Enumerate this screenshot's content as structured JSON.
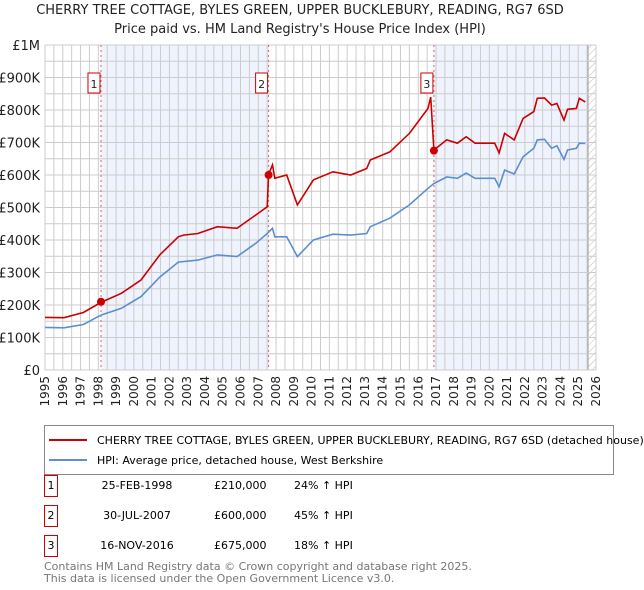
{
  "title": "CHERRY TREE COTTAGE, BYLES GREEN, UPPER BUCKLEBURY, READING, RG7 6SD",
  "subtitle": "Price paid vs. HM Land Registry's House Price Index (HPI)",
  "colors": {
    "property": "#cc0000",
    "hpi": "#5b8fd0",
    "shade": "#eef3fd",
    "grid": "#cccccc"
  },
  "chart_data": {
    "type": "line",
    "ylim": [
      0,
      1000000
    ],
    "xlim": [
      1995,
      2026
    ],
    "yticks": [
      {
        "v": 0,
        "label": "£0"
      },
      {
        "v": 100000,
        "label": "£100K"
      },
      {
        "v": 200000,
        "label": "£200K"
      },
      {
        "v": 300000,
        "label": "£300K"
      },
      {
        "v": 400000,
        "label": "£400K"
      },
      {
        "v": 500000,
        "label": "£500K"
      },
      {
        "v": 600000,
        "label": "£600K"
      },
      {
        "v": 700000,
        "label": "£700K"
      },
      {
        "v": 800000,
        "label": "£800K"
      },
      {
        "v": 900000,
        "label": "£900K"
      },
      {
        "v": 1000000,
        "label": "£1M"
      }
    ],
    "xticks": [
      "1995",
      "1996",
      "1997",
      "1998",
      "1999",
      "2000",
      "2001",
      "2002",
      "2003",
      "2004",
      "2005",
      "2006",
      "2007",
      "2008",
      "2009",
      "2010",
      "2011",
      "2012",
      "2013",
      "2014",
      "2015",
      "2016",
      "2017",
      "2018",
      "2019",
      "2020",
      "2021",
      "2022",
      "2023",
      "2024",
      "2025",
      "2026"
    ],
    "series": [
      {
        "name": "CHERRY TREE COTTAGE, BYLES GREEN, UPPER BUCKLEBURY, READING, RG7 6SD (detached house)",
        "points": [
          [
            1995,
            162000
          ],
          [
            1996.07,
            161000
          ],
          [
            1997.16,
            177000
          ],
          [
            1998.15,
            208000
          ],
          [
            1999.3,
            236000
          ],
          [
            2000.4,
            277000
          ],
          [
            2001.46,
            354000
          ],
          [
            2002.5,
            410000
          ],
          [
            2002.8,
            415000
          ],
          [
            2003.6,
            420000
          ],
          [
            2004.7,
            441000
          ],
          [
            2005.8,
            436000
          ],
          [
            2006.86,
            477000
          ],
          [
            2007.5,
            502000
          ],
          [
            2007.58,
            602000
          ],
          [
            2007.8,
            631000
          ],
          [
            2007.93,
            590000
          ],
          [
            2008.6,
            600000
          ],
          [
            2009.2,
            508000
          ],
          [
            2010.1,
            585000
          ],
          [
            2011.2,
            610000
          ],
          [
            2012.2,
            600000
          ],
          [
            2013.1,
            620000
          ],
          [
            2013.3,
            646000
          ],
          [
            2014.4,
            671000
          ],
          [
            2015.5,
            728000
          ],
          [
            2016.55,
            805000
          ],
          [
            2016.7,
            840000
          ],
          [
            2016.88,
            677000
          ],
          [
            2017.6,
            708000
          ],
          [
            2018.2,
            698000
          ],
          [
            2018.7,
            718000
          ],
          [
            2019.2,
            698000
          ],
          [
            2020.3,
            698000
          ],
          [
            2020.55,
            668000
          ],
          [
            2020.86,
            728000
          ],
          [
            2021.4,
            708000
          ],
          [
            2021.9,
            774000
          ],
          [
            2022.5,
            795000
          ],
          [
            2022.7,
            836000
          ],
          [
            2023.1,
            837000
          ],
          [
            2023.5,
            815000
          ],
          [
            2023.8,
            820000
          ],
          [
            2024.2,
            769000
          ],
          [
            2024.4,
            802000
          ],
          [
            2024.9,
            805000
          ],
          [
            2025.06,
            836000
          ],
          [
            2025.4,
            825000
          ]
        ]
      },
      {
        "name": "HPI: Average price, detached house, West Berkshire",
        "points": [
          [
            1995,
            131000
          ],
          [
            1996.07,
            130000
          ],
          [
            1997.16,
            140000
          ],
          [
            1998.15,
            169000
          ],
          [
            1999.3,
            190000
          ],
          [
            2000.4,
            226000
          ],
          [
            2001.46,
            286000
          ],
          [
            2002.5,
            332000
          ],
          [
            2003.6,
            338000
          ],
          [
            2004.7,
            354000
          ],
          [
            2005.8,
            349000
          ],
          [
            2006.86,
            390000
          ],
          [
            2007.5,
            420000
          ],
          [
            2007.8,
            436000
          ],
          [
            2007.93,
            410000
          ],
          [
            2008.6,
            410000
          ],
          [
            2009.2,
            349000
          ],
          [
            2010.1,
            400000
          ],
          [
            2011.2,
            418000
          ],
          [
            2012.2,
            415000
          ],
          [
            2013.1,
            420000
          ],
          [
            2013.3,
            441000
          ],
          [
            2014.4,
            467000
          ],
          [
            2015.5,
            508000
          ],
          [
            2016.55,
            559000
          ],
          [
            2016.88,
            574000
          ],
          [
            2017.6,
            594000
          ],
          [
            2018.2,
            590000
          ],
          [
            2018.7,
            606000
          ],
          [
            2019.2,
            590000
          ],
          [
            2020.3,
            590000
          ],
          [
            2020.55,
            564000
          ],
          [
            2020.86,
            615000
          ],
          [
            2021.4,
            603000
          ],
          [
            2021.9,
            656000
          ],
          [
            2022.5,
            682000
          ],
          [
            2022.7,
            708000
          ],
          [
            2023.1,
            710000
          ],
          [
            2023.5,
            682000
          ],
          [
            2023.8,
            690000
          ],
          [
            2024.2,
            648000
          ],
          [
            2024.4,
            677000
          ],
          [
            2024.9,
            682000
          ],
          [
            2025.06,
            698000
          ],
          [
            2025.4,
            697000
          ]
        ]
      }
    ],
    "sales": [
      {
        "n": "1",
        "x": 1998.15,
        "y": 210000
      },
      {
        "n": "2",
        "x": 2007.58,
        "y": 600000
      },
      {
        "n": "3",
        "x": 2016.88,
        "y": 675000
      }
    ],
    "forecast_start": 2025.55
  },
  "legend": {
    "property": "CHERRY TREE COTTAGE, BYLES GREEN, UPPER BUCKLEBURY, READING, RG7 6SD (detached house)",
    "hpi": "HPI: Average price, detached house, West Berkshire"
  },
  "transactions": [
    {
      "n": "1",
      "date": "25-FEB-1998",
      "price": "£210,000",
      "hpi": "24% ↑ HPI"
    },
    {
      "n": "2",
      "date": "30-JUL-2007",
      "price": "£600,000",
      "hpi": "45% ↑ HPI"
    },
    {
      "n": "3",
      "date": "16-NOV-2016",
      "price": "£675,000",
      "hpi": "18% ↑ HPI"
    }
  ],
  "footer": {
    "line1": "Contains HM Land Registry data © Crown copyright and database right 2025.",
    "line2": "This data is licensed under the Open Government Licence v3.0."
  }
}
